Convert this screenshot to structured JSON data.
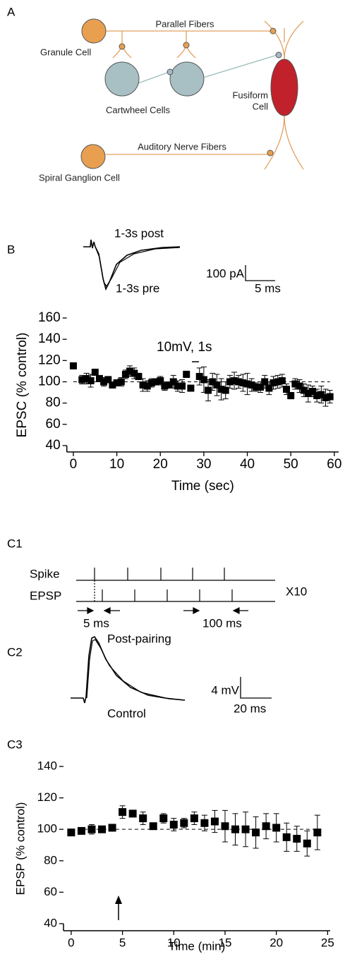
{
  "panel_labels": {
    "a": "A",
    "b": "B",
    "c1": "C1",
    "c2": "C2",
    "c3": "C3"
  },
  "diagram": {
    "parallel_fibers": "Parallel Fibers",
    "granule_cell": "Granule Cell",
    "cartwheel_cells": "Cartwheel Cells",
    "fusiform_cell": [
      "Fusiform",
      "Cell"
    ],
    "auditory_nerve_fibers": "Auditory Nerve Fibers",
    "spiral_ganglion_cell": "Spiral Ganglion Cell"
  },
  "trace_b": {
    "upper_label": "1-3s post",
    "lower_label": "1-3s pre",
    "scale_y": "100 pA",
    "scale_x": "5 ms"
  },
  "protocol_c1": {
    "rows": [
      "Spike",
      "EPSP"
    ],
    "repeat": "X10",
    "short_interval": "5 ms",
    "long_interval": "100 ms"
  },
  "trace_c2": {
    "upper_label": "Post-pairing",
    "lower_label": "Control",
    "scale_y": "4 mV",
    "scale_x": "20 ms"
  },
  "chart_data": [
    {
      "type": "scatter",
      "x_label": "Time (sec)",
      "y_label": "EPSC (% control)",
      "annotation": "10mV, 1s",
      "color": "#000000",
      "x": [
        0,
        2,
        3,
        4,
        5,
        6,
        7,
        8,
        9,
        10,
        11,
        12,
        13,
        14,
        15,
        16,
        17,
        18,
        19,
        20,
        21,
        22,
        23,
        24,
        25,
        26,
        27,
        29,
        30,
        31,
        32,
        33,
        34,
        35,
        36,
        37,
        38,
        39,
        40,
        41,
        42,
        43,
        44,
        45,
        46,
        47,
        48,
        49,
        50,
        51,
        52,
        53,
        54,
        55,
        56,
        57,
        58,
        59
      ],
      "values": [
        115,
        102,
        103,
        101,
        109,
        103,
        100,
        102,
        97,
        99,
        100,
        107,
        110,
        108,
        105,
        97,
        96,
        99,
        100,
        101,
        96,
        97,
        100,
        96,
        96,
        107,
        94,
        105,
        102,
        92,
        100,
        97,
        93,
        92,
        100,
        101,
        100,
        99,
        98,
        97,
        95,
        95,
        100,
        94,
        99,
        100,
        101,
        93,
        87,
        98,
        96,
        92,
        89,
        91,
        87,
        88,
        85,
        86
      ],
      "errors": [
        2,
        4,
        5,
        6,
        2,
        3,
        4,
        3,
        3,
        3,
        4,
        4,
        5,
        5,
        3,
        6,
        5,
        4,
        3,
        4,
        4,
        3,
        6,
        5,
        6,
        3,
        2,
        8,
        12,
        10,
        8,
        10,
        10,
        8,
        6,
        8,
        6,
        8,
        10,
        6,
        4,
        5,
        6,
        6,
        6,
        6,
        6,
        5,
        3,
        5,
        6,
        6,
        8,
        5,
        6,
        8,
        8,
        6
      ],
      "reference_line": 100,
      "xlim": [
        -1.5,
        61
      ],
      "ylim": [
        34,
        160
      ],
      "xticks": [
        0,
        10,
        20,
        30,
        40,
        50,
        60
      ],
      "yticks": [
        40,
        60,
        80,
        100,
        120,
        140,
        160
      ]
    },
    {
      "type": "scatter",
      "x_label": "Time (min)",
      "y_label": "EPSP (% control)",
      "color": "#000000",
      "x": [
        0,
        1,
        2,
        3,
        4,
        5,
        6,
        7,
        8,
        9,
        10,
        11,
        12,
        13,
        14,
        15,
        16,
        17,
        18,
        19,
        20,
        21,
        22,
        23,
        24
      ],
      "values": [
        98,
        99,
        100,
        100,
        101,
        111,
        110,
        107,
        102,
        107,
        103,
        104,
        107,
        104,
        105,
        102,
        100,
        100,
        98,
        102,
        101,
        95,
        94,
        91,
        98
      ],
      "errors": [
        2,
        2,
        3,
        2,
        2,
        4,
        2,
        4,
        2,
        3,
        4,
        3,
        4,
        5,
        7,
        10,
        10,
        11,
        10,
        8,
        9,
        9,
        8,
        8,
        11
      ],
      "reference_line": 100,
      "xlim": [
        -0.75,
        25.25
      ],
      "ylim": [
        35.5,
        140
      ],
      "xticks": [
        0,
        5,
        10,
        15,
        20,
        25
      ],
      "yticks": [
        40,
        60,
        80,
        100,
        120,
        140
      ]
    }
  ]
}
